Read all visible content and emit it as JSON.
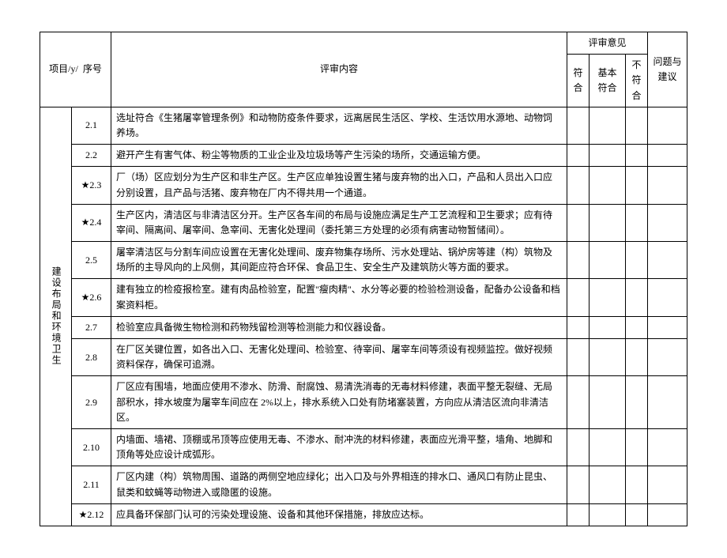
{
  "headers": {
    "project": "项目/y/",
    "seq": "序号",
    "content": "评审内容",
    "opinionGroup": "评审意见",
    "op1": "符合",
    "op2": "基本符合",
    "op3": "不符合",
    "suggest": "问题与建议"
  },
  "category": "建设布局和环境卫生",
  "rows": [
    {
      "num": "2.1",
      "text": "选址符合《生猪屠宰管理条例》和动物防疫条件要求，远离居民生活区、学校、生活饮用水源地、动物饲养场。"
    },
    {
      "num": "2.2",
      "text": "避开产生有害气体、粉尘等物质的工业企业及垃圾场等产生污染的场所，交通运输方便。"
    },
    {
      "num": "★2.3",
      "text": "厂（场）区应划分为生产区和非生产区。生产区应单独设置生猪与废弃物的出入口，产品和人员出入口应分别设置，且产品与活猪、废弃物在厂内不得共用一个通道。"
    },
    {
      "num": "★2.4",
      "text": "生产区内，清洁区与非清洁区分开。生产区各车间的布局与设施应满足生产工艺流程和卫生要求；应有待宰间、隔离间、屠宰间、急宰间、无害化处理间（委托第三方处理的必须有病害动物暂储间）。"
    },
    {
      "num": "2.5",
      "text": "屠宰清洁区与分割车间应设置在无害化处理间、废弃物集存场所、污水处理站、锅炉房等建（构）筑物及场所的主导风向的上风侧，其间距应符合环保、食品卫生、安全生产及建筑防火等方面的要求。"
    },
    {
      "num": "★2.6",
      "text": "建有独立的检疫报检室。建有肉品检验室，配置\"瘦肉精\"、水分等必要的检验检测设备，配备办公设备和档案资料柜。"
    },
    {
      "num": "2.7",
      "text": "检验室应具备微生物检测和药物残留检测等检测能力和仪器设备。"
    },
    {
      "num": "2.8",
      "text": "在厂区关键位置，如各出入口、无害化处理间、检验室、待宰间、屠宰车间等须设有视频监控。做好视频资料保存，确保可追溯。"
    },
    {
      "num": "2.9",
      "text": "厂区应有围墙，地面应使用不渗水、防滑、耐腐蚀、易清洗消毒的无毒材料修建，表面平整无裂缝、无局部积水，排水坡度为屠宰车间应在 2%以上，排水系统入口处有防堵塞装置，方向应从清洁区流向非清洁区。"
    },
    {
      "num": "2.10",
      "text": "内墙面、墙裙、顶棚或吊顶等应使用无毒、不渗水、耐冲洗的材料修建，表面应光滑平整，墙角、地脚和顶角等处应设计成弧形。"
    },
    {
      "num": "2.11",
      "text": "厂区内建（构）筑物周围、道路的两侧空地应绿化；出入口及与外界相连的排水口、通风口有防止昆虫、鼠类和蚊蝇等动物进入或隐匿的设施。"
    },
    {
      "num": "★2.12",
      "text": "应具备环保部门认可的污染处理设施、设备和其他环保措施，排放应达标。"
    }
  ]
}
